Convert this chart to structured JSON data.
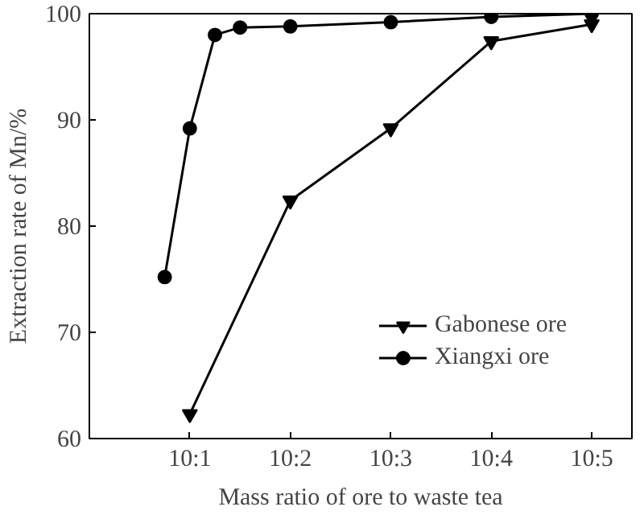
{
  "chart_data": {
    "type": "line",
    "xlabel": "Mass ratio of ore to waste tea",
    "ylabel": "Extraction rate of Mn/%",
    "categories": [
      null,
      "10:1",
      null,
      null,
      null,
      "10:2",
      null,
      null,
      null,
      "10:3",
      null,
      null,
      null,
      "10:4",
      null,
      null,
      null,
      "10:5"
    ],
    "ylim": [
      60,
      100
    ],
    "yticks": [
      60,
      70,
      80,
      90,
      100
    ],
    "grid": false,
    "legend": "bottom right",
    "line_style": "solid",
    "series": [
      {
        "name": "Gabonese ore",
        "color": "#000000",
        "marker": "triangle",
        "values": [
          null,
          62.3,
          null,
          null,
          null,
          82.4,
          null,
          null,
          null,
          89.2,
          null,
          null,
          null,
          97.4,
          null,
          null,
          null,
          99.0
        ]
      },
      {
        "name": "Xiangxi ore",
        "color": "#000000",
        "marker": "circle",
        "values": [
          75.2,
          89.2,
          98.0,
          98.7,
          null,
          98.8,
          null,
          null,
          null,
          99.2,
          null,
          null,
          null,
          99.7,
          null,
          null,
          null,
          100
        ]
      }
    ]
  }
}
